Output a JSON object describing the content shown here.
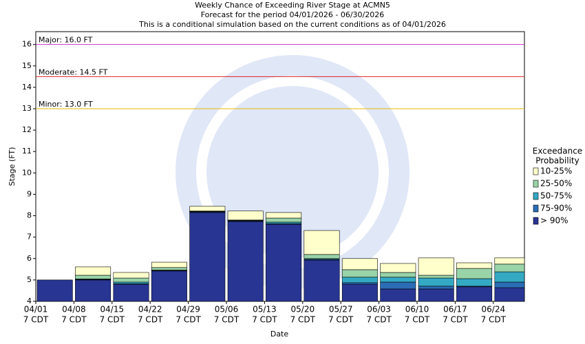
{
  "chart_data": {
    "type": "exceedance_bar",
    "title": [
      "Weekly Chance of Exceeding River Stage at ACMN5",
      "Forecast for the period 04/01/2026 - 06/30/2026",
      "This is a conditional simulation based on the current conditions as of 04/01/2026"
    ],
    "y_label": "Stage (FT)",
    "x_label": "Date",
    "categories": [
      "04/01",
      "04/08",
      "04/15",
      "04/22",
      "04/29",
      "05/06",
      "05/13",
      "05/20",
      "05/27",
      "06/03",
      "06/10",
      "06/17",
      "06/24"
    ],
    "tick_time": "7 CDT",
    "ylim": [
      4,
      16.6
    ],
    "yticks": [
      4,
      5,
      6,
      7,
      8,
      9,
      10,
      11,
      12,
      13,
      14,
      15,
      16
    ],
    "legend_title": [
      "Exceedance",
      "Probability"
    ],
    "thresholds": [
      {
        "label": "Major: 16.0 FT",
        "value": 16,
        "color": "#cc33cc"
      },
      {
        "label": "Moderate: 14.5 FT",
        "value": 14.5,
        "color": "#dd2222"
      },
      {
        "label": "Minor: 13.0 FT",
        "value": 13,
        "color": "#e6b800"
      }
    ],
    "series": [
      {
        "name": "> 90%",
        "color": "#283593",
        "values": [
          5.0,
          5.0,
          4.8,
          5.42,
          8.15,
          7.73,
          7.6,
          5.93,
          4.8,
          4.58,
          4.58,
          4.68,
          4.64
        ]
      },
      {
        "name": "75-90%",
        "color": "#2b6cb5",
        "values": [
          5.0,
          5.02,
          4.82,
          5.44,
          8.18,
          7.76,
          7.63,
          5.96,
          4.87,
          4.9,
          4.71,
          4.71,
          4.9
        ]
      },
      {
        "name": "50-75%",
        "color": "#34a9c4",
        "values": [
          5.0,
          5.05,
          4.9,
          5.46,
          8.2,
          7.78,
          7.7,
          6.0,
          5.13,
          5.13,
          5.09,
          5.06,
          5.38
        ]
      },
      {
        "name": "25-50%",
        "color": "#99d3a8",
        "values": [
          5.0,
          5.22,
          5.09,
          5.58,
          8.22,
          7.8,
          7.89,
          6.19,
          5.48,
          5.35,
          5.22,
          5.54,
          5.74
        ]
      },
      {
        "name": "10-25%",
        "color": "#ffffcc",
        "values": [
          5.0,
          5.61,
          5.35,
          5.83,
          8.44,
          8.22,
          8.15,
          7.31,
          6.0,
          5.77,
          6.03,
          5.8,
          6.03
        ]
      }
    ]
  }
}
